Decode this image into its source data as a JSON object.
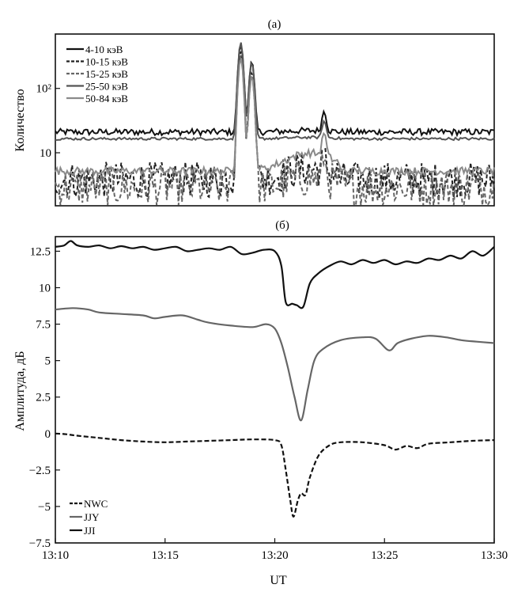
{
  "chart_data": [
    {
      "type": "line",
      "panel_label": "(а)",
      "ylabel": "Количество",
      "yscale": "log",
      "ylim": [
        1.5,
        700
      ],
      "xlim_minutes": [
        0,
        20
      ],
      "yticks": [
        {
          "value": 10,
          "label": "10"
        },
        {
          "value": 100,
          "label": "10²"
        }
      ],
      "legend": "top-left",
      "series": [
        {
          "name": "4-10 кэВ",
          "color": "#111111",
          "dash": "solid",
          "baseline": 21,
          "noise": 0.05,
          "peaks": [
            {
              "t": 8.45,
              "v": 490
            },
            {
              "t": 8.95,
              "v": 260
            },
            {
              "t": 12.25,
              "v": 43
            }
          ]
        },
        {
          "name": "10-15 кэВ",
          "color": "#222222",
          "dash": "dashed",
          "baseline": 3.8,
          "noise": 0.28,
          "peaks": [
            {
              "t": 8.45,
              "v": 380
            },
            {
              "t": 8.95,
              "v": 180
            },
            {
              "t": 12.25,
              "v": 6.5
            }
          ]
        },
        {
          "name": "15-25 кэВ",
          "color": "#666666",
          "dash": "dashed",
          "baseline": 2.9,
          "noise": 0.3,
          "peaks": [
            {
              "t": 8.45,
              "v": 330
            },
            {
              "t": 8.95,
              "v": 160
            },
            {
              "t": 12.25,
              "v": 6
            }
          ]
        },
        {
          "name": "25-50 кэВ",
          "color": "#555555",
          "dash": "solid",
          "baseline": 16.5,
          "noise": 0.02,
          "peaks": [
            {
              "t": 8.45,
              "v": 520
            },
            {
              "t": 8.95,
              "v": 250
            },
            {
              "t": 12.25,
              "v": 30
            }
          ]
        },
        {
          "name": "50-84 кэВ",
          "color": "#8a8a8a",
          "dash": "solid",
          "baseline": 5.2,
          "noise": 0.06,
          "peaks": [
            {
              "t": 8.45,
              "v": 300
            },
            {
              "t": 8.95,
              "v": 150
            },
            {
              "t": 12.25,
              "v": 12
            }
          ]
        }
      ]
    },
    {
      "type": "line",
      "panel_label": "(б)",
      "xlabel": "UT",
      "ylabel": "Амплитуда, дБ",
      "ylim": [
        -7.5,
        13.5
      ],
      "yticks": [
        {
          "value": 12.5,
          "label": "12.5"
        },
        {
          "value": 10,
          "label": "10"
        },
        {
          "value": 7.5,
          "label": "7.5"
        },
        {
          "value": 5,
          "label": "5"
        },
        {
          "value": 2.5,
          "label": "2.5"
        },
        {
          "value": 0,
          "label": "0"
        },
        {
          "value": -2.5,
          "label": "−2.5"
        },
        {
          "value": -5,
          "label": "−5"
        },
        {
          "value": -7.5,
          "label": "−7.5"
        }
      ],
      "xticks": [
        {
          "value": 0,
          "label": "13:10"
        },
        {
          "value": 5,
          "label": "13:15"
        },
        {
          "value": 10,
          "label": "13:20"
        },
        {
          "value": 15,
          "label": "13:25"
        },
        {
          "value": 20,
          "label": "13:30"
        }
      ],
      "legend": "bottom-left",
      "series": [
        {
          "name": "NWC",
          "color": "#111111",
          "dash": "dashed",
          "points": [
            [
              0,
              0
            ],
            [
              0.5,
              -0.05
            ],
            [
              1,
              -0.15
            ],
            [
              2,
              -0.3
            ],
            [
              3,
              -0.45
            ],
            [
              4,
              -0.55
            ],
            [
              5,
              -0.6
            ],
            [
              6,
              -0.55
            ],
            [
              7,
              -0.5
            ],
            [
              8,
              -0.45
            ],
            [
              9,
              -0.4
            ],
            [
              10,
              -0.45
            ],
            [
              10.3,
              -0.8
            ],
            [
              10.5,
              -2.5
            ],
            [
              10.7,
              -4.5
            ],
            [
              10.85,
              -5.7
            ],
            [
              11.05,
              -4.6
            ],
            [
              11.2,
              -4.1
            ],
            [
              11.4,
              -4.2
            ],
            [
              11.6,
              -3
            ],
            [
              12,
              -1.5
            ],
            [
              12.5,
              -0.8
            ],
            [
              13,
              -0.6
            ],
            [
              14,
              -0.6
            ],
            [
              15,
              -0.8
            ],
            [
              15.5,
              -1.1
            ],
            [
              16,
              -0.85
            ],
            [
              16.5,
              -1.0
            ],
            [
              17,
              -0.7
            ],
            [
              18,
              -0.6
            ],
            [
              19,
              -0.5
            ],
            [
              20,
              -0.45
            ]
          ]
        },
        {
          "name": "JJY",
          "color": "#666666",
          "dash": "solid",
          "points": [
            [
              0,
              8.5
            ],
            [
              0.8,
              8.6
            ],
            [
              1.5,
              8.5
            ],
            [
              2,
              8.3
            ],
            [
              3,
              8.2
            ],
            [
              4,
              8.1
            ],
            [
              4.5,
              7.9
            ],
            [
              5,
              8.0
            ],
            [
              5.8,
              8.1
            ],
            [
              6.5,
              7.8
            ],
            [
              7,
              7.6
            ],
            [
              8,
              7.4
            ],
            [
              9,
              7.3
            ],
            [
              9.6,
              7.5
            ],
            [
              10,
              7.2
            ],
            [
              10.3,
              6.2
            ],
            [
              10.6,
              4.5
            ],
            [
              10.9,
              2.5
            ],
            [
              11.2,
              0.9
            ],
            [
              11.5,
              3
            ],
            [
              11.8,
              5
            ],
            [
              12.2,
              5.8
            ],
            [
              13,
              6.4
            ],
            [
              14,
              6.6
            ],
            [
              14.6,
              6.5
            ],
            [
              15.2,
              5.7
            ],
            [
              15.6,
              6.2
            ],
            [
              16.2,
              6.5
            ],
            [
              17,
              6.7
            ],
            [
              17.8,
              6.6
            ],
            [
              18.5,
              6.4
            ],
            [
              19.2,
              6.3
            ],
            [
              20,
              6.2
            ]
          ]
        },
        {
          "name": "JJI",
          "color": "#111111",
          "dash": "solid",
          "points": [
            [
              0,
              12.8
            ],
            [
              0.4,
              12.9
            ],
            [
              0.7,
              13.2
            ],
            [
              1,
              12.9
            ],
            [
              1.5,
              12.8
            ],
            [
              2,
              12.9
            ],
            [
              2.5,
              12.7
            ],
            [
              3,
              12.85
            ],
            [
              3.5,
              12.7
            ],
            [
              4,
              12.8
            ],
            [
              4.5,
              12.6
            ],
            [
              5,
              12.7
            ],
            [
              5.5,
              12.8
            ],
            [
              6,
              12.5
            ],
            [
              6.5,
              12.6
            ],
            [
              7,
              12.7
            ],
            [
              7.5,
              12.6
            ],
            [
              8,
              12.8
            ],
            [
              8.5,
              12.3
            ],
            [
              9,
              12.4
            ],
            [
              9.5,
              12.6
            ],
            [
              10,
              12.5
            ],
            [
              10.3,
              11.5
            ],
            [
              10.5,
              9.0
            ],
            [
              10.8,
              8.9
            ],
            [
              11,
              8.8
            ],
            [
              11.3,
              8.7
            ],
            [
              11.6,
              10.3
            ],
            [
              12,
              11.0
            ],
            [
              12.5,
              11.5
            ],
            [
              13,
              11.8
            ],
            [
              13.5,
              11.6
            ],
            [
              14,
              11.9
            ],
            [
              14.5,
              11.7
            ],
            [
              15,
              11.9
            ],
            [
              15.5,
              11.6
            ],
            [
              16,
              11.8
            ],
            [
              16.5,
              11.7
            ],
            [
              17,
              12.0
            ],
            [
              17.5,
              11.9
            ],
            [
              18,
              12.2
            ],
            [
              18.5,
              12.0
            ],
            [
              19,
              12.5
            ],
            [
              19.5,
              12.2
            ],
            [
              20,
              12.8
            ]
          ]
        }
      ]
    }
  ]
}
